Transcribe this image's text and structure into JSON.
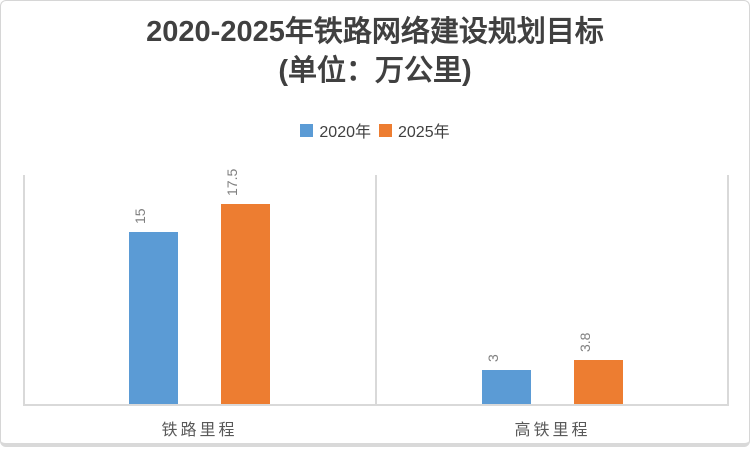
{
  "chart_data": {
    "type": "bar",
    "title_line1": "2020-2025年铁路网络建设规划目标",
    "title_line2": "(单位：万公里)",
    "categories": [
      "铁路里程",
      "高铁里程"
    ],
    "series": [
      {
        "name": "2020年",
        "color": "#5B9BD5",
        "values": [
          15,
          3
        ]
      },
      {
        "name": "2025年",
        "color": "#ED7D31",
        "values": [
          17.5,
          3.8
        ]
      }
    ],
    "ylim": [
      0,
      20
    ],
    "legend_position": "top",
    "gridlines": false,
    "data_labels_rotated": true,
    "colors": {
      "title_text": "#404040",
      "legend_text": "#404040",
      "category_text": "#595959",
      "data_label_text": "#808080",
      "axis_line": "#d9d9d9"
    }
  }
}
